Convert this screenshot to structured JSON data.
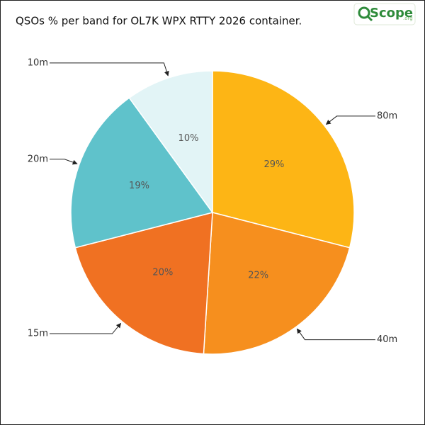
{
  "chart_data": {
    "type": "pie",
    "title": "QSOs % per band for OL7K WPX RTTY 2026 container.",
    "categories": [
      "80m",
      "40m",
      "15m",
      "20m",
      "10m"
    ],
    "values": [
      29,
      22,
      20,
      19,
      10
    ],
    "value_labels": [
      "29%",
      "22%",
      "20%",
      "19%",
      "10%"
    ],
    "colors": [
      "#fdb515",
      "#f68f1e",
      "#f07122",
      "#5fc2cb",
      "#e2f4f6"
    ]
  },
  "logo": {
    "text": "Scope",
    "suffix": ".org"
  }
}
